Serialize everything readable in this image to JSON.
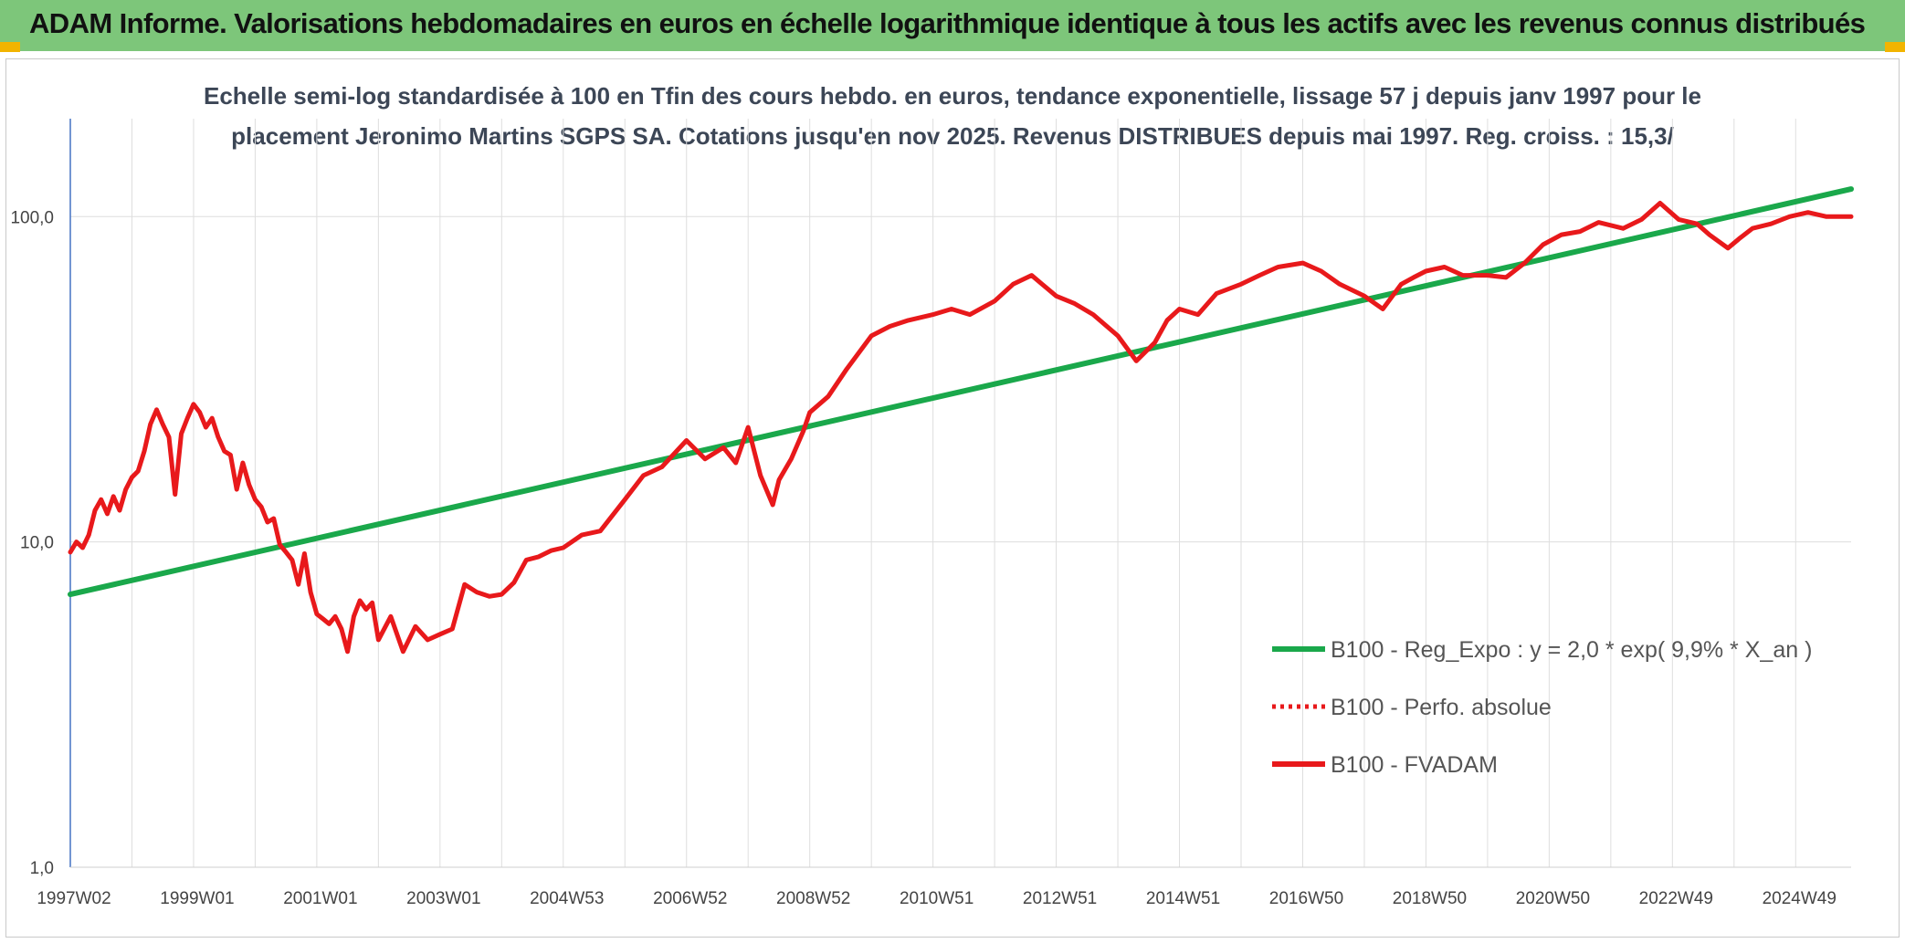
{
  "banner": {
    "title": "ADAM Informe. Valorisations hebdomadaires en euros en échelle logarithmique identique à tous les actifs avec les revenus connus distribués"
  },
  "chart_data": {
    "type": "line",
    "title_lines": [
      "Echelle semi-log standardisée à 100 en Tfin des cours hebdo. en euros, tendance exponentielle, lissage 57 j depuis janv 1997 pour le",
      "placement Jeronimo Martins SGPS SA. Cotations jusqu'en nov 2025. Revenus DISTRIBUES depuis mai 1997. Reg. croiss. : 15,3/"
    ],
    "y_scale": "log",
    "ylim": [
      1,
      200
    ],
    "y_ticks": [
      {
        "value": 1,
        "label": "1,0"
      },
      {
        "value": 10,
        "label": "10,0"
      },
      {
        "value": 100,
        "label": "100,0"
      }
    ],
    "xlim": [
      1997.0,
      2025.9
    ],
    "x_ticks": [
      {
        "value": 1997.0,
        "label": "1997W02"
      },
      {
        "value": 1999.0,
        "label": "1999W01"
      },
      {
        "value": 2001.0,
        "label": "2001W01"
      },
      {
        "value": 2003.0,
        "label": "2003W01"
      },
      {
        "value": 2005.0,
        "label": "2004W53"
      },
      {
        "value": 2007.0,
        "label": "2006W52"
      },
      {
        "value": 2009.0,
        "label": "2008W52"
      },
      {
        "value": 2011.0,
        "label": "2010W51"
      },
      {
        "value": 2013.0,
        "label": "2012W51"
      },
      {
        "value": 2015.0,
        "label": "2014W51"
      },
      {
        "value": 2017.0,
        "label": "2016W50"
      },
      {
        "value": 2019.0,
        "label": "2018W50"
      },
      {
        "value": 2021.0,
        "label": "2020W50"
      },
      {
        "value": 2023.0,
        "label": "2022W49"
      },
      {
        "value": 2025.0,
        "label": "2024W49"
      }
    ],
    "grid": "vertical and horizontal",
    "legend_position": "bottom-right",
    "series": [
      {
        "name": "B100 - Reg_Expo : y = 2,0 * exp( 9,9% *  X_an )",
        "color": "#1aa84b",
        "style": "solid",
        "x": [
          1997.0,
          2025.9
        ],
        "y": [
          6.9,
          121.5
        ]
      },
      {
        "name": "B100 - Perfo. absolue",
        "color": "#e8191b",
        "style": "dotted",
        "x": [],
        "y": []
      },
      {
        "name": "B100 - FVADAM",
        "color": "#e8191b",
        "style": "solid",
        "x": [
          1997.0,
          1997.1,
          1997.2,
          1997.3,
          1997.4,
          1997.5,
          1997.6,
          1997.7,
          1997.8,
          1997.9,
          1998.0,
          1998.1,
          1998.2,
          1998.3,
          1998.4,
          1998.5,
          1998.6,
          1998.7,
          1998.8,
          1998.9,
          1999.0,
          1999.1,
          1999.2,
          1999.3,
          1999.4,
          1999.5,
          1999.6,
          1999.7,
          1999.8,
          1999.9,
          2000.0,
          2000.1,
          2000.2,
          2000.3,
          2000.4,
          2000.5,
          2000.6,
          2000.7,
          2000.8,
          2000.9,
          2001.0,
          2001.1,
          2001.2,
          2001.3,
          2001.4,
          2001.5,
          2001.6,
          2001.7,
          2001.8,
          2001.9,
          2002.0,
          2002.2,
          2002.4,
          2002.6,
          2002.8,
          2003.0,
          2003.2,
          2003.4,
          2003.6,
          2003.8,
          2004.0,
          2004.2,
          2004.4,
          2004.6,
          2004.8,
          2005.0,
          2005.3,
          2005.6,
          2006.0,
          2006.3,
          2006.6,
          2007.0,
          2007.3,
          2007.6,
          2007.8,
          2008.0,
          2008.2,
          2008.4,
          2008.5,
          2008.7,
          2008.9,
          2009.0,
          2009.3,
          2009.6,
          2010.0,
          2010.3,
          2010.6,
          2011.0,
          2011.3,
          2011.6,
          2012.0,
          2012.3,
          2012.6,
          2013.0,
          2013.3,
          2013.6,
          2014.0,
          2014.3,
          2014.6,
          2014.8,
          2015.0,
          2015.3,
          2015.6,
          2016.0,
          2016.3,
          2016.6,
          2017.0,
          2017.3,
          2017.6,
          2018.0,
          2018.3,
          2018.6,
          2018.8,
          2019.0,
          2019.3,
          2019.6,
          2020.0,
          2020.3,
          2020.6,
          2020.9,
          2021.2,
          2021.5,
          2021.8,
          2022.2,
          2022.5,
          2022.8,
          2023.1,
          2023.4,
          2023.6,
          2023.9,
          2024.1,
          2024.3,
          2024.6,
          2024.9,
          2025.2,
          2025.5,
          2025.9
        ],
        "y": [
          9.3,
          10.0,
          9.6,
          10.5,
          12.5,
          13.5,
          12.2,
          13.8,
          12.5,
          14.5,
          15.8,
          16.5,
          19.0,
          23.0,
          25.5,
          23.0,
          21.0,
          14.0,
          21.5,
          24.0,
          26.5,
          25.0,
          22.5,
          24.0,
          21.0,
          19.0,
          18.5,
          14.5,
          17.5,
          15.0,
          13.5,
          12.8,
          11.5,
          11.8,
          9.8,
          9.3,
          8.8,
          7.4,
          9.2,
          7.0,
          6.0,
          5.8,
          5.6,
          5.9,
          5.4,
          4.6,
          5.9,
          6.6,
          6.2,
          6.5,
          5.0,
          5.9,
          4.6,
          5.5,
          5.0,
          5.2,
          5.4,
          7.4,
          7.0,
          6.8,
          6.9,
          7.5,
          8.8,
          9.0,
          9.4,
          9.6,
          10.5,
          10.8,
          13.5,
          16.0,
          17.0,
          20.5,
          18.0,
          19.5,
          17.5,
          22.5,
          16.0,
          13.0,
          15.5,
          18.0,
          22.0,
          25.0,
          28.0,
          34.0,
          43.0,
          46.0,
          48.0,
          50.0,
          52.0,
          50.0,
          55.0,
          62.0,
          66.0,
          57.0,
          54.0,
          50.0,
          43.0,
          36.0,
          41.0,
          48.0,
          52.0,
          50.0,
          58.0,
          62.0,
          66.0,
          70.0,
          72.0,
          68.0,
          62.0,
          57.0,
          52.0,
          62.0,
          65.0,
          68.0,
          70.0,
          66.0,
          66.0,
          65.0,
          72.0,
          82.0,
          88.0,
          90.0,
          96.0,
          92.0,
          98.0,
          110.0,
          98.0,
          95.0,
          88.0,
          80.0,
          86.0,
          92.0,
          95.0,
          100.0,
          103.0,
          100.0,
          100.0
        ]
      }
    ]
  }
}
